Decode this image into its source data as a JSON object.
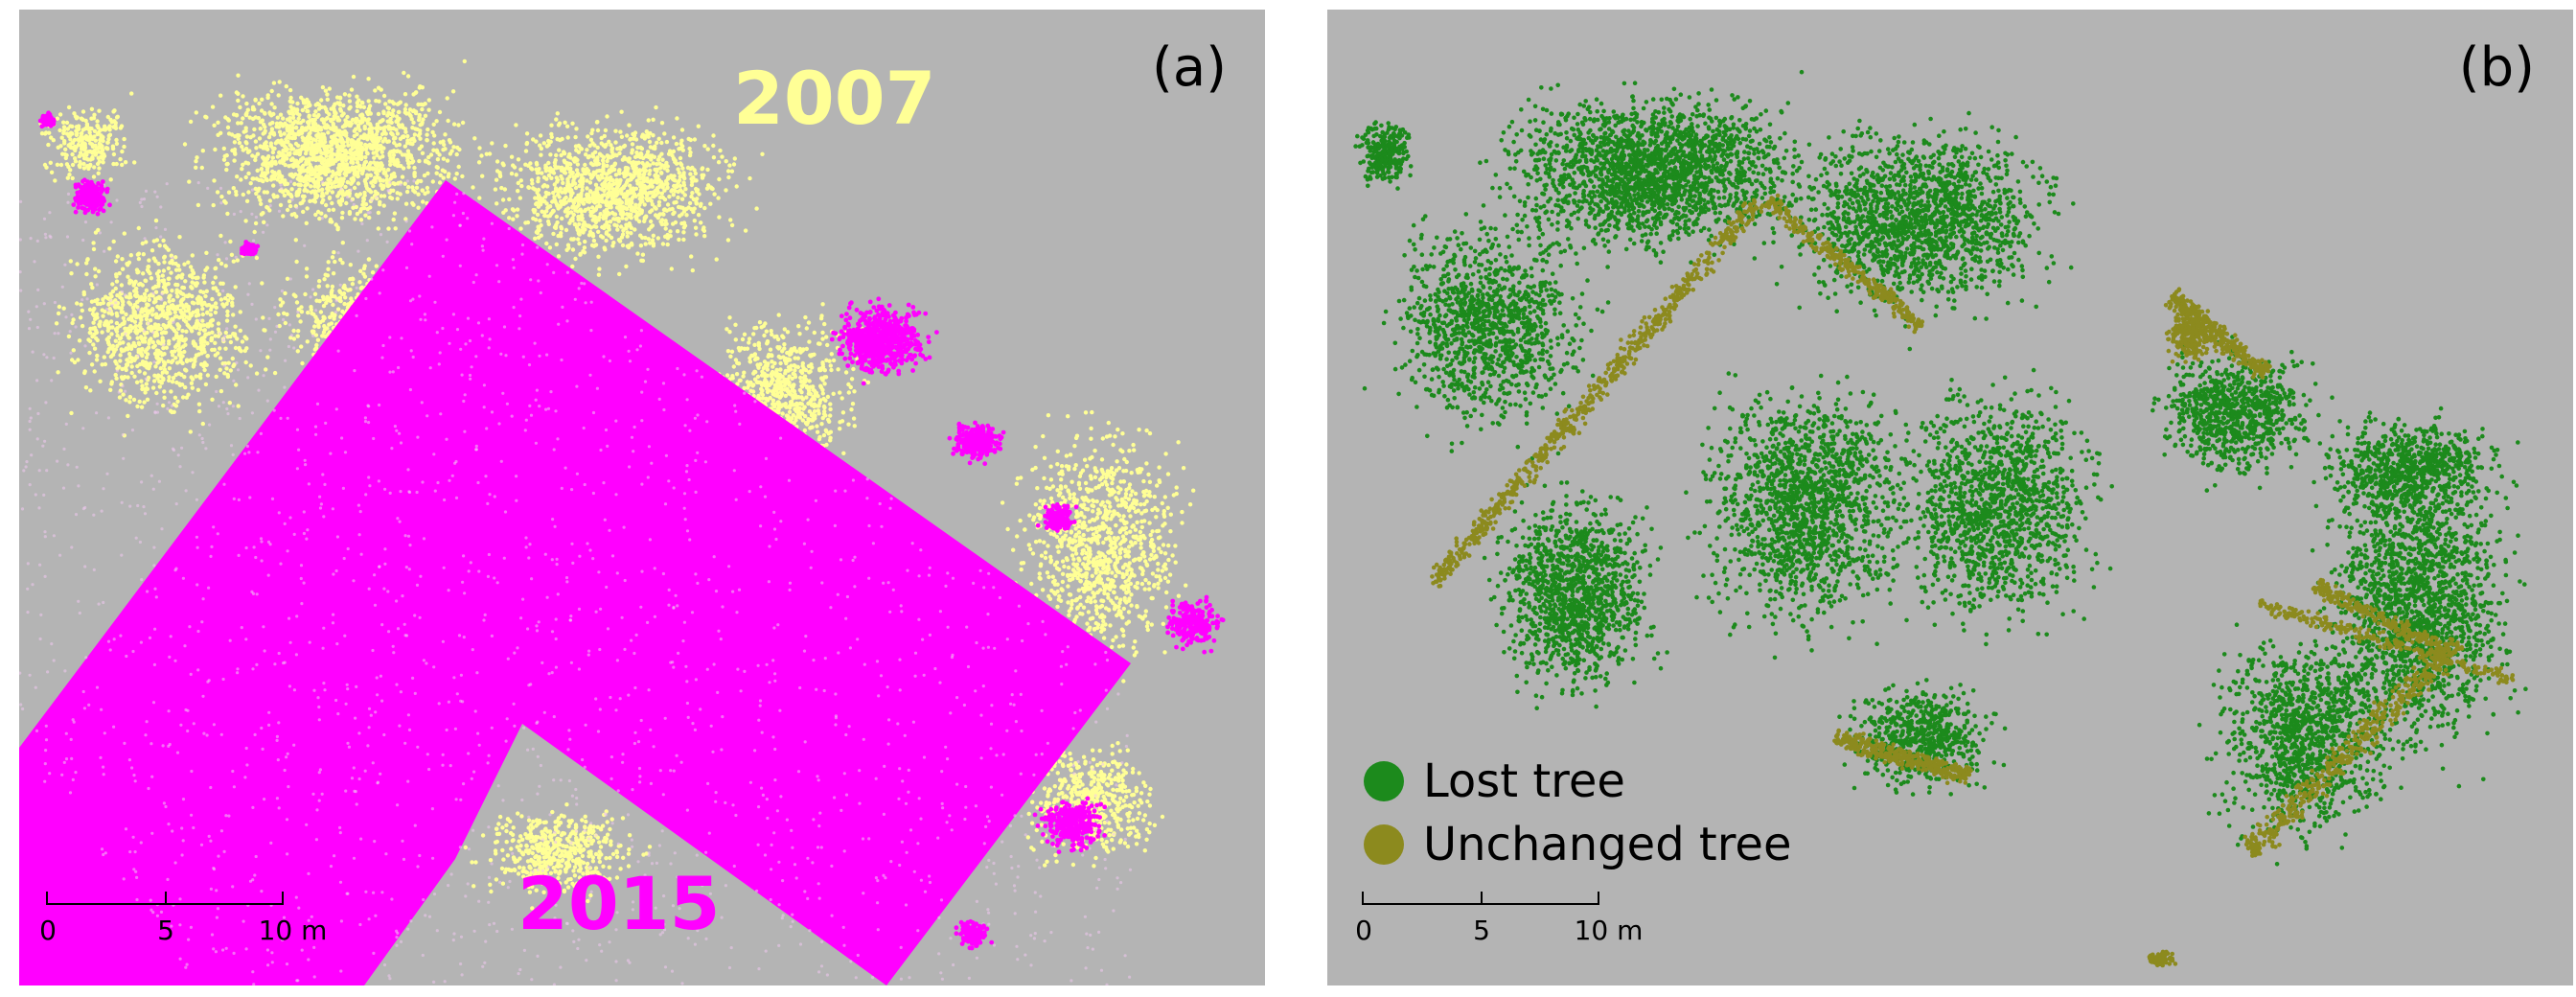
{
  "colors": {
    "background": "#b4b4b4",
    "points_2007": "#ffff96",
    "points_2015": "#ff00ff",
    "lost_tree": "#1c8a1c",
    "unchanged_tree": "#8c8a1e"
  },
  "panel_a": {
    "label": "(a)",
    "year_2007": "2007",
    "year_2015": "2015",
    "scale": {
      "ticks": [
        "0",
        "5",
        "10"
      ],
      "unit": "m"
    }
  },
  "panel_b": {
    "label": "(b)",
    "legend": [
      {
        "label": "Lost tree",
        "color": "#1c8a1c"
      },
      {
        "label": "Unchanged tree",
        "color": "#8c8a1e"
      }
    ],
    "scale": {
      "ticks": [
        "0",
        "5",
        "10"
      ],
      "unit": "m"
    }
  }
}
